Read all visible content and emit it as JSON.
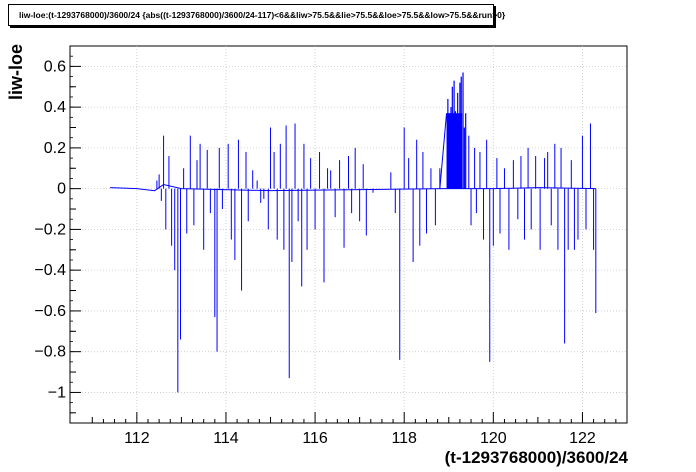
{
  "chart_data": {
    "type": "line",
    "title": "liw-loe:(t-1293768000)/3600/24 {abs((t-1293768000)/3600/24-117)<6&&liw>75.5&&lie>75.5&&loe>75.5&&low>75.5&&run>0}",
    "xlabel": "(t-1293768000)/3600/24",
    "ylabel": "liw-loe",
    "xlim": [
      110.5,
      123.0
    ],
    "ylim": [
      -1.15,
      0.7
    ],
    "x_ticks": [
      112,
      114,
      116,
      118,
      120,
      122
    ],
    "y_ticks": [
      0.6,
      0.4,
      0.2,
      0,
      -0.2,
      -0.4,
      -0.6,
      -0.8,
      -1
    ],
    "x_tick_labels": [
      "112",
      "114",
      "116",
      "118",
      "120",
      "122"
    ],
    "y_tick_labels": [
      "0.6",
      "0.4",
      "0.2",
      "0",
      "−0.2",
      "−0.4",
      "−0.6",
      "−0.8",
      "−1"
    ],
    "grid": true,
    "color": "#0000ff",
    "baseline": [
      [
        111.4,
        0.005
      ],
      [
        112.0,
        0.0
      ],
      [
        112.4,
        -0.01
      ],
      [
        112.6,
        0.02
      ],
      [
        113.0,
        0.0
      ],
      [
        115.0,
        -0.01
      ],
      [
        117.0,
        -0.005
      ],
      [
        118.9,
        0.0
      ],
      [
        119.3,
        0.0
      ],
      [
        120.0,
        0.0
      ],
      [
        121.0,
        0.005
      ],
      [
        122.3,
        0.0
      ]
    ],
    "spikes": [
      [
        112.45,
        0.04
      ],
      [
        112.5,
        0.07
      ],
      [
        112.55,
        -0.06
      ],
      [
        112.6,
        0.26
      ],
      [
        112.65,
        -0.2
      ],
      [
        112.72,
        0.16
      ],
      [
        112.78,
        -0.28
      ],
      [
        112.85,
        -0.4
      ],
      [
        112.92,
        -1.0
      ],
      [
        112.98,
        -0.74
      ],
      [
        113.05,
        0.1
      ],
      [
        113.12,
        -0.22
      ],
      [
        113.2,
        0.26
      ],
      [
        113.28,
        -0.18
      ],
      [
        113.35,
        0.14
      ],
      [
        113.42,
        0.22
      ],
      [
        113.5,
        -0.3
      ],
      [
        113.58,
        0.19
      ],
      [
        113.65,
        -0.12
      ],
      [
        113.75,
        -0.63
      ],
      [
        113.8,
        -0.8
      ],
      [
        113.85,
        0.2
      ],
      [
        113.92,
        -0.1
      ],
      [
        114.05,
        0.22
      ],
      [
        114.12,
        -0.25
      ],
      [
        114.2,
        -0.35
      ],
      [
        114.28,
        0.24
      ],
      [
        114.35,
        -0.5
      ],
      [
        114.45,
        0.18
      ],
      [
        114.5,
        -0.16
      ],
      [
        114.6,
        0.09
      ],
      [
        114.7,
        0.04
      ],
      [
        114.78,
        -0.07
      ],
      [
        114.85,
        -0.05
      ],
      [
        114.95,
        -0.2
      ],
      [
        115.0,
        0.3
      ],
      [
        115.08,
        0.18
      ],
      [
        115.15,
        -0.25
      ],
      [
        115.22,
        0.22
      ],
      [
        115.3,
        -0.3
      ],
      [
        115.35,
        0.31
      ],
      [
        115.42,
        -0.93
      ],
      [
        115.48,
        -0.36
      ],
      [
        115.55,
        0.32
      ],
      [
        115.62,
        -0.16
      ],
      [
        115.7,
        -0.48
      ],
      [
        115.75,
        0.22
      ],
      [
        115.82,
        -0.3
      ],
      [
        115.9,
        0.15
      ],
      [
        116.0,
        -0.2
      ],
      [
        116.1,
        0.18
      ],
      [
        116.2,
        -0.46
      ],
      [
        116.28,
        0.1
      ],
      [
        116.35,
        0.09
      ],
      [
        116.45,
        -0.14
      ],
      [
        116.55,
        0.14
      ],
      [
        116.65,
        -0.29
      ],
      [
        116.75,
        0.16
      ],
      [
        116.82,
        -0.12
      ],
      [
        116.9,
        0.2
      ],
      [
        117.0,
        -0.16
      ],
      [
        117.08,
        0.12
      ],
      [
        117.15,
        -0.23
      ],
      [
        117.3,
        -0.02
      ],
      [
        117.7,
        0.08
      ],
      [
        117.8,
        -0.12
      ],
      [
        117.9,
        -0.84
      ],
      [
        118.0,
        0.3
      ],
      [
        118.1,
        0.15
      ],
      [
        118.2,
        -0.36
      ],
      [
        118.28,
        0.24
      ],
      [
        118.35,
        -0.28
      ],
      [
        118.42,
        0.18
      ],
      [
        118.5,
        -0.22
      ],
      [
        118.6,
        0.1
      ],
      [
        118.7,
        -0.18
      ],
      [
        118.8,
        0.1
      ],
      [
        119.45,
        0.26
      ],
      [
        119.5,
        -0.18
      ],
      [
        119.58,
        0.2
      ],
      [
        119.62,
        -0.12
      ],
      [
        119.7,
        0.18
      ],
      [
        119.78,
        -0.25
      ],
      [
        119.85,
        0.24
      ],
      [
        119.92,
        -0.85
      ],
      [
        120.0,
        -0.28
      ],
      [
        120.08,
        0.15
      ],
      [
        120.15,
        -0.22
      ],
      [
        120.25,
        0.1
      ],
      [
        120.35,
        -0.3
      ],
      [
        120.45,
        0.14
      ],
      [
        120.55,
        -0.15
      ],
      [
        120.62,
        0.16
      ],
      [
        120.7,
        -0.25
      ],
      [
        120.78,
        0.2
      ],
      [
        120.85,
        -0.2
      ],
      [
        120.95,
        0.16
      ],
      [
        121.05,
        -0.3
      ],
      [
        121.15,
        0.15
      ],
      [
        121.22,
        0.18
      ],
      [
        121.3,
        -0.18
      ],
      [
        121.38,
        0.22
      ],
      [
        121.45,
        -0.3
      ],
      [
        121.52,
        0.2
      ],
      [
        121.6,
        -0.76
      ],
      [
        121.68,
        -0.3
      ],
      [
        121.75,
        0.14
      ],
      [
        121.82,
        -0.3
      ],
      [
        121.9,
        -0.25
      ],
      [
        122.0,
        0.26
      ],
      [
        122.08,
        -0.2
      ],
      [
        122.18,
        0.32
      ],
      [
        122.25,
        -0.3
      ],
      [
        122.3,
        -0.61
      ]
    ],
    "ramp": [
      [
        118.8,
        0.0
      ],
      [
        118.95,
        0.37
      ]
    ],
    "dense_block": {
      "x": [
        118.95,
        119.3
      ],
      "y": [
        0.0,
        0.37
      ]
    },
    "dense_spikes": [
      [
        118.98,
        0.44
      ],
      [
        119.02,
        0.37
      ],
      [
        119.05,
        0.4
      ],
      [
        119.08,
        0.5
      ],
      [
        119.12,
        0.53
      ],
      [
        119.15,
        0.38
      ],
      [
        119.2,
        0.47
      ],
      [
        119.25,
        0.52
      ],
      [
        119.28,
        0.55
      ],
      [
        119.32,
        0.57
      ],
      [
        119.35,
        0.3
      ],
      [
        119.38,
        0.37
      ]
    ]
  }
}
